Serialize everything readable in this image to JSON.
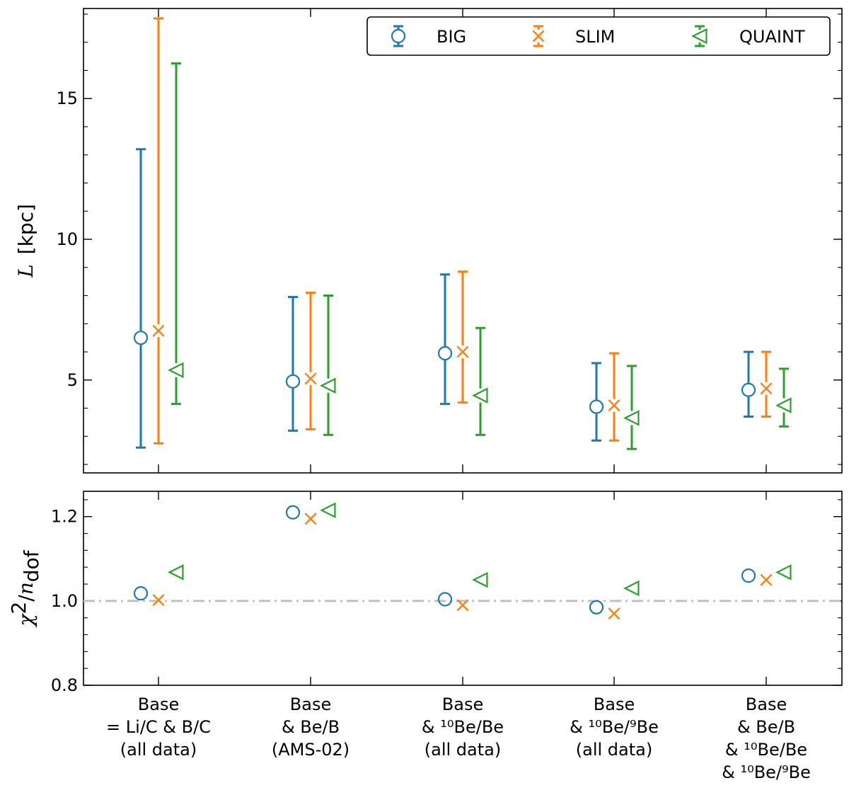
{
  "chart_data": [
    {
      "type": "scatter",
      "ylabel_symbol": "L",
      "ylabel_unit": "[kpc]",
      "ylim": [
        1.7,
        18.2
      ],
      "y_ticks": [
        5,
        10,
        15
      ],
      "grid": false,
      "legend_position": "top-right",
      "categories": [
        [
          "Base",
          "= Li/C & B/C",
          "(all data)"
        ],
        [
          "Base",
          "& Be/B",
          "(AMS-02)"
        ],
        [
          "Base",
          "& ¹⁰Be/Be",
          "(all data)"
        ],
        [
          "Base",
          "& ¹⁰Be/⁹Be",
          "(all data)"
        ],
        [
          "Base",
          "& Be/B",
          "& ¹⁰Be/Be",
          "& ¹⁰Be/⁹Be"
        ]
      ],
      "series": [
        {
          "name": "BIG",
          "color": "#1f77b4",
          "marker": "circle",
          "values": [
            6.5,
            4.95,
            5.95,
            4.05,
            4.65
          ],
          "lower": [
            2.6,
            3.2,
            4.15,
            2.85,
            3.7
          ],
          "upper": [
            13.2,
            7.95,
            8.75,
            5.6,
            6.0
          ]
        },
        {
          "name": "SLIM",
          "color": "#ff7f0e",
          "marker": "x",
          "values": [
            6.75,
            5.05,
            6.0,
            4.1,
            4.7
          ],
          "lower": [
            2.75,
            3.25,
            4.2,
            2.85,
            3.7
          ],
          "upper": [
            17.85,
            8.1,
            8.85,
            5.95,
            6.0
          ]
        },
        {
          "name": "QUAINT",
          "color": "#2ca02c",
          "marker": "triangle-left",
          "values": [
            5.35,
            4.8,
            4.45,
            3.65,
            4.1
          ],
          "lower": [
            4.15,
            3.05,
            3.05,
            2.55,
            3.35
          ],
          "upper": [
            16.25,
            8.0,
            6.85,
            5.5,
            5.4
          ]
        }
      ]
    },
    {
      "type": "scatter",
      "ylabel": "χ²/n_dof",
      "ylim": [
        0.8,
        1.26
      ],
      "y_ticks": [
        0.8,
        1.0,
        1.2
      ],
      "y_tick_labels": [
        "0.8",
        "1.0",
        "1.2"
      ],
      "reference_line": {
        "y": 1.0,
        "style": "dash-dot",
        "color": "#c0c0c0"
      },
      "series": [
        {
          "name": "BIG",
          "color": "#1f77b4",
          "marker": "circle",
          "values": [
            1.018,
            1.21,
            1.004,
            0.985,
            1.06
          ]
        },
        {
          "name": "SLIM",
          "color": "#ff7f0e",
          "marker": "x",
          "values": [
            1.002,
            1.195,
            0.99,
            0.97,
            1.05
          ]
        },
        {
          "name": "QUAINT",
          "color": "#2ca02c",
          "marker": "triangle-left",
          "values": [
            1.068,
            1.215,
            1.05,
            1.03,
            1.068
          ]
        }
      ]
    }
  ]
}
